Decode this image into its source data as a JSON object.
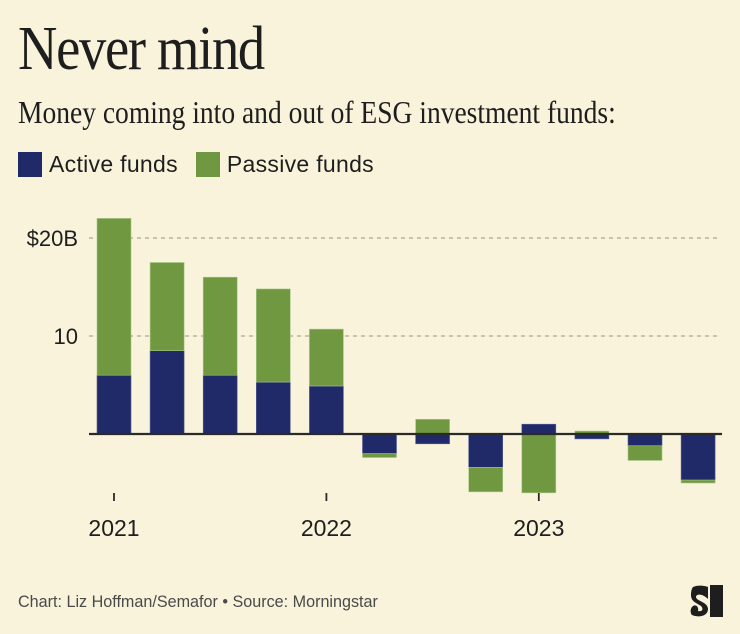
{
  "header": {
    "title": "Never mind",
    "subtitle": "Money coming into and out of ESG investment funds:"
  },
  "legend": [
    {
      "label": "Active funds",
      "color": "#212A68"
    },
    {
      "label": "Passive funds",
      "color": "#6F9840"
    }
  ],
  "footer": {
    "credit": "Chart: Liz Hoffman/Semafor • Source: Morningstar",
    "logo": "semafor-logo"
  },
  "colors": {
    "background": "#F8F3DA",
    "active": "#212A68",
    "passive": "#6F9840",
    "gridline": "#B8B39E",
    "axis": "#2A2A2A",
    "text": "#1E1E1E"
  },
  "chart_data": {
    "type": "bar",
    "stacked": true,
    "title": "Never mind",
    "subtitle": "Money coming into and out of ESG investment funds:",
    "xlabel": "",
    "ylabel": "",
    "categories": [
      "2021 Q1",
      "2021 Q2",
      "2021 Q3",
      "2021 Q4",
      "2022 Q1",
      "2022 Q2",
      "2022 Q3",
      "2022 Q4",
      "2023 Q1",
      "2023 Q2",
      "2023 Q3",
      "2023 Q4"
    ],
    "x_tick_labels": [
      {
        "category_index": 0,
        "label": "2021"
      },
      {
        "category_index": 4,
        "label": "2022"
      },
      {
        "category_index": 8,
        "label": "2023"
      }
    ],
    "y_ticks": [
      {
        "value": 20,
        "label": "$20B"
      },
      {
        "value": 10,
        "label": "10"
      }
    ],
    "ylim": [
      -7,
      22.5
    ],
    "grid": true,
    "legend_position": "top-left",
    "series": [
      {
        "name": "Active funds",
        "values": [
          6.0,
          8.5,
          6.0,
          5.3,
          4.9,
          -2.0,
          -1.0,
          -3.4,
          1.0,
          -0.5,
          -1.2,
          -4.7
        ]
      },
      {
        "name": "Passive funds",
        "values": [
          16.0,
          9.0,
          10.0,
          9.5,
          5.8,
          -0.4,
          1.5,
          -2.5,
          -6.0,
          0.3,
          -1.5,
          -0.3
        ]
      }
    ],
    "units": "billions USD"
  }
}
